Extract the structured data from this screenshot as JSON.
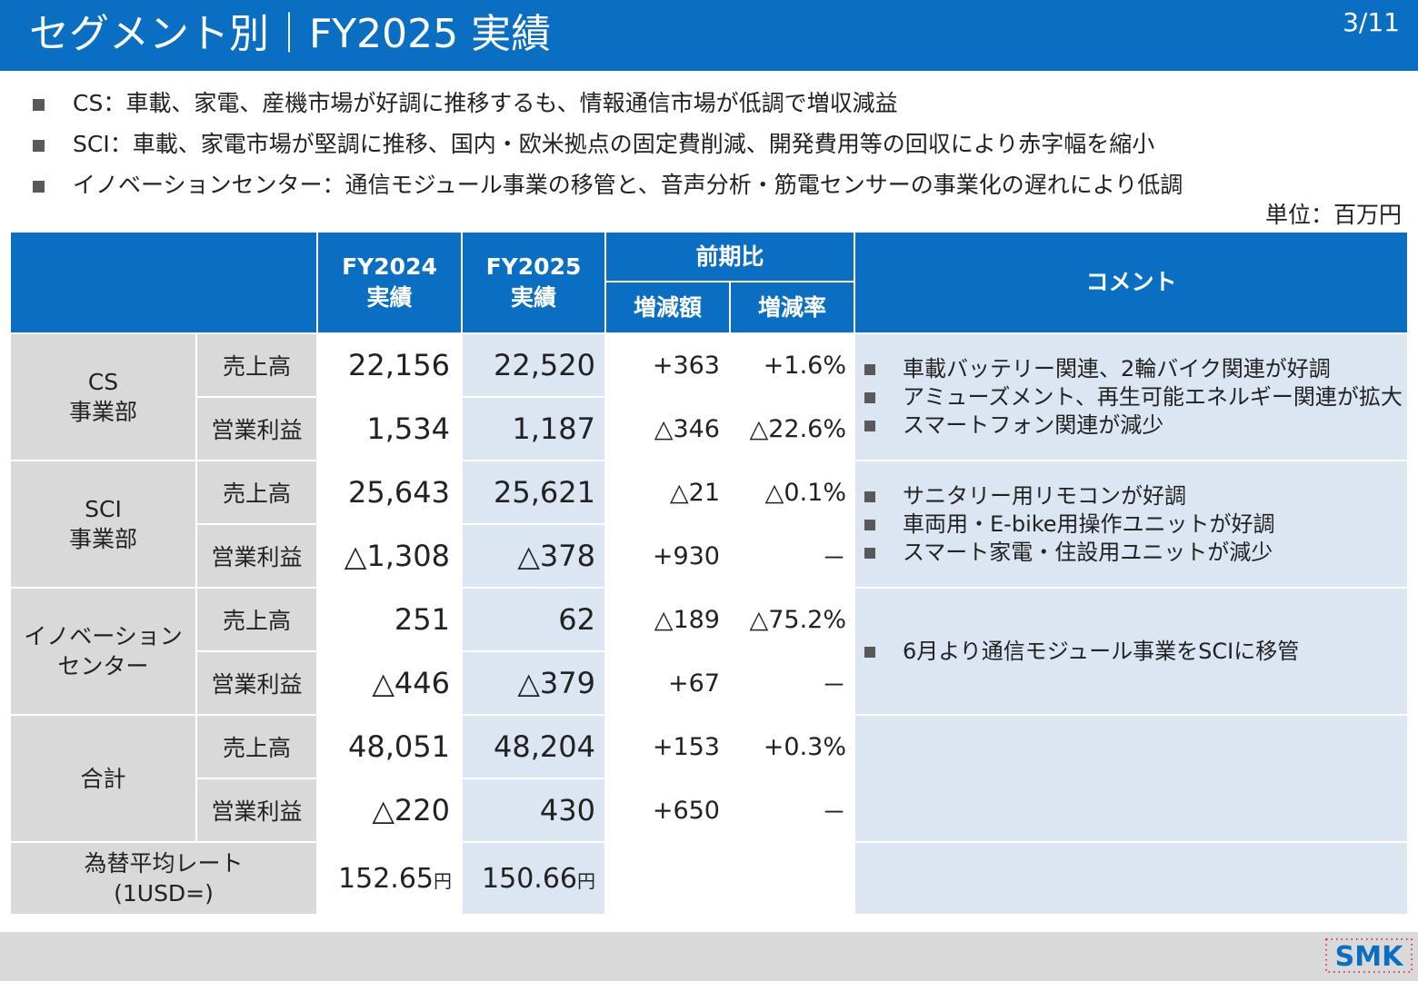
{
  "header": {
    "title": "セグメント別｜FY2025 実績",
    "page": "3/11"
  },
  "bullets": [
    "CS：車載、家電、産機市場が好調に推移するも、情報通信市場が低調で増収減益",
    "SCI：車載、家電市場が堅調に推移、国内・欧米拠点の固定費削減、開発費用等の回収により赤字幅を縮小",
    "イノベーションセンター：通信モジュール事業の移管と、音声分析・筋電センサーの事業化の遅れにより低調"
  ],
  "unit": "単位：百万円",
  "table": {
    "headers": {
      "fy2024_l1": "FY2024",
      "fy2024_l2": "実績",
      "fy2025_l1": "FY2025",
      "fy2025_l2": "実績",
      "yoy": "前期比",
      "change": "増減額",
      "rate": "増減率",
      "comment": "コメント"
    },
    "segments": [
      {
        "name_l1": "CS",
        "name_l2": "事業部",
        "rows": [
          {
            "item": "売上高",
            "fy2024": "22,156",
            "fy2025": "22,520",
            "change": "+363",
            "rate": "+1.6%"
          },
          {
            "item": "営業利益",
            "fy2024": "1,534",
            "fy2025": "1,187",
            "change": "△346",
            "rate": "△22.6%"
          }
        ],
        "comments": [
          "車載バッテリー関連、2輪バイク関連が好調",
          "アミューズメント、再生可能エネルギー関連が拡大",
          "スマートフォン関連が減少"
        ]
      },
      {
        "name_l1": "SCI",
        "name_l2": "事業部",
        "rows": [
          {
            "item": "売上高",
            "fy2024": "25,643",
            "fy2025": "25,621",
            "change": "△21",
            "rate": "△0.1%"
          },
          {
            "item": "営業利益",
            "fy2024": "△1,308",
            "fy2025": "△378",
            "change": "+930",
            "rate": "－"
          }
        ],
        "comments": [
          "サニタリー用リモコンが好調",
          "車両用・E-bike用操作ユニットが好調",
          "スマート家電・住設用ユニットが減少"
        ]
      },
      {
        "name_l1": "イノベーション",
        "name_l2": "センター",
        "rows": [
          {
            "item": "売上高",
            "fy2024": "251",
            "fy2025": "62",
            "change": "△189",
            "rate": "△75.2%"
          },
          {
            "item": "営業利益",
            "fy2024": "△446",
            "fy2025": "△379",
            "change": "+67",
            "rate": "－"
          }
        ],
        "comments": [
          "6月より通信モジュール事業をSCIに移管"
        ]
      },
      {
        "name_l1": "合計",
        "rows": [
          {
            "item": "売上高",
            "fy2024": "48,051",
            "fy2025": "48,204",
            "change": "+153",
            "rate": "+0.3%"
          },
          {
            "item": "営業利益",
            "fy2024": "△220",
            "fy2025": "430",
            "change": "+650",
            "rate": "－"
          }
        ]
      }
    ],
    "fx": {
      "label_l1": "為替平均レート",
      "label_l2": "(1USD=)",
      "fy2024": "152.65",
      "fy2025": "150.66",
      "yen": "円"
    }
  },
  "logo": {
    "text": "SMK",
    "color": "#0a6fc2",
    "dot_color": "#e0003c"
  }
}
